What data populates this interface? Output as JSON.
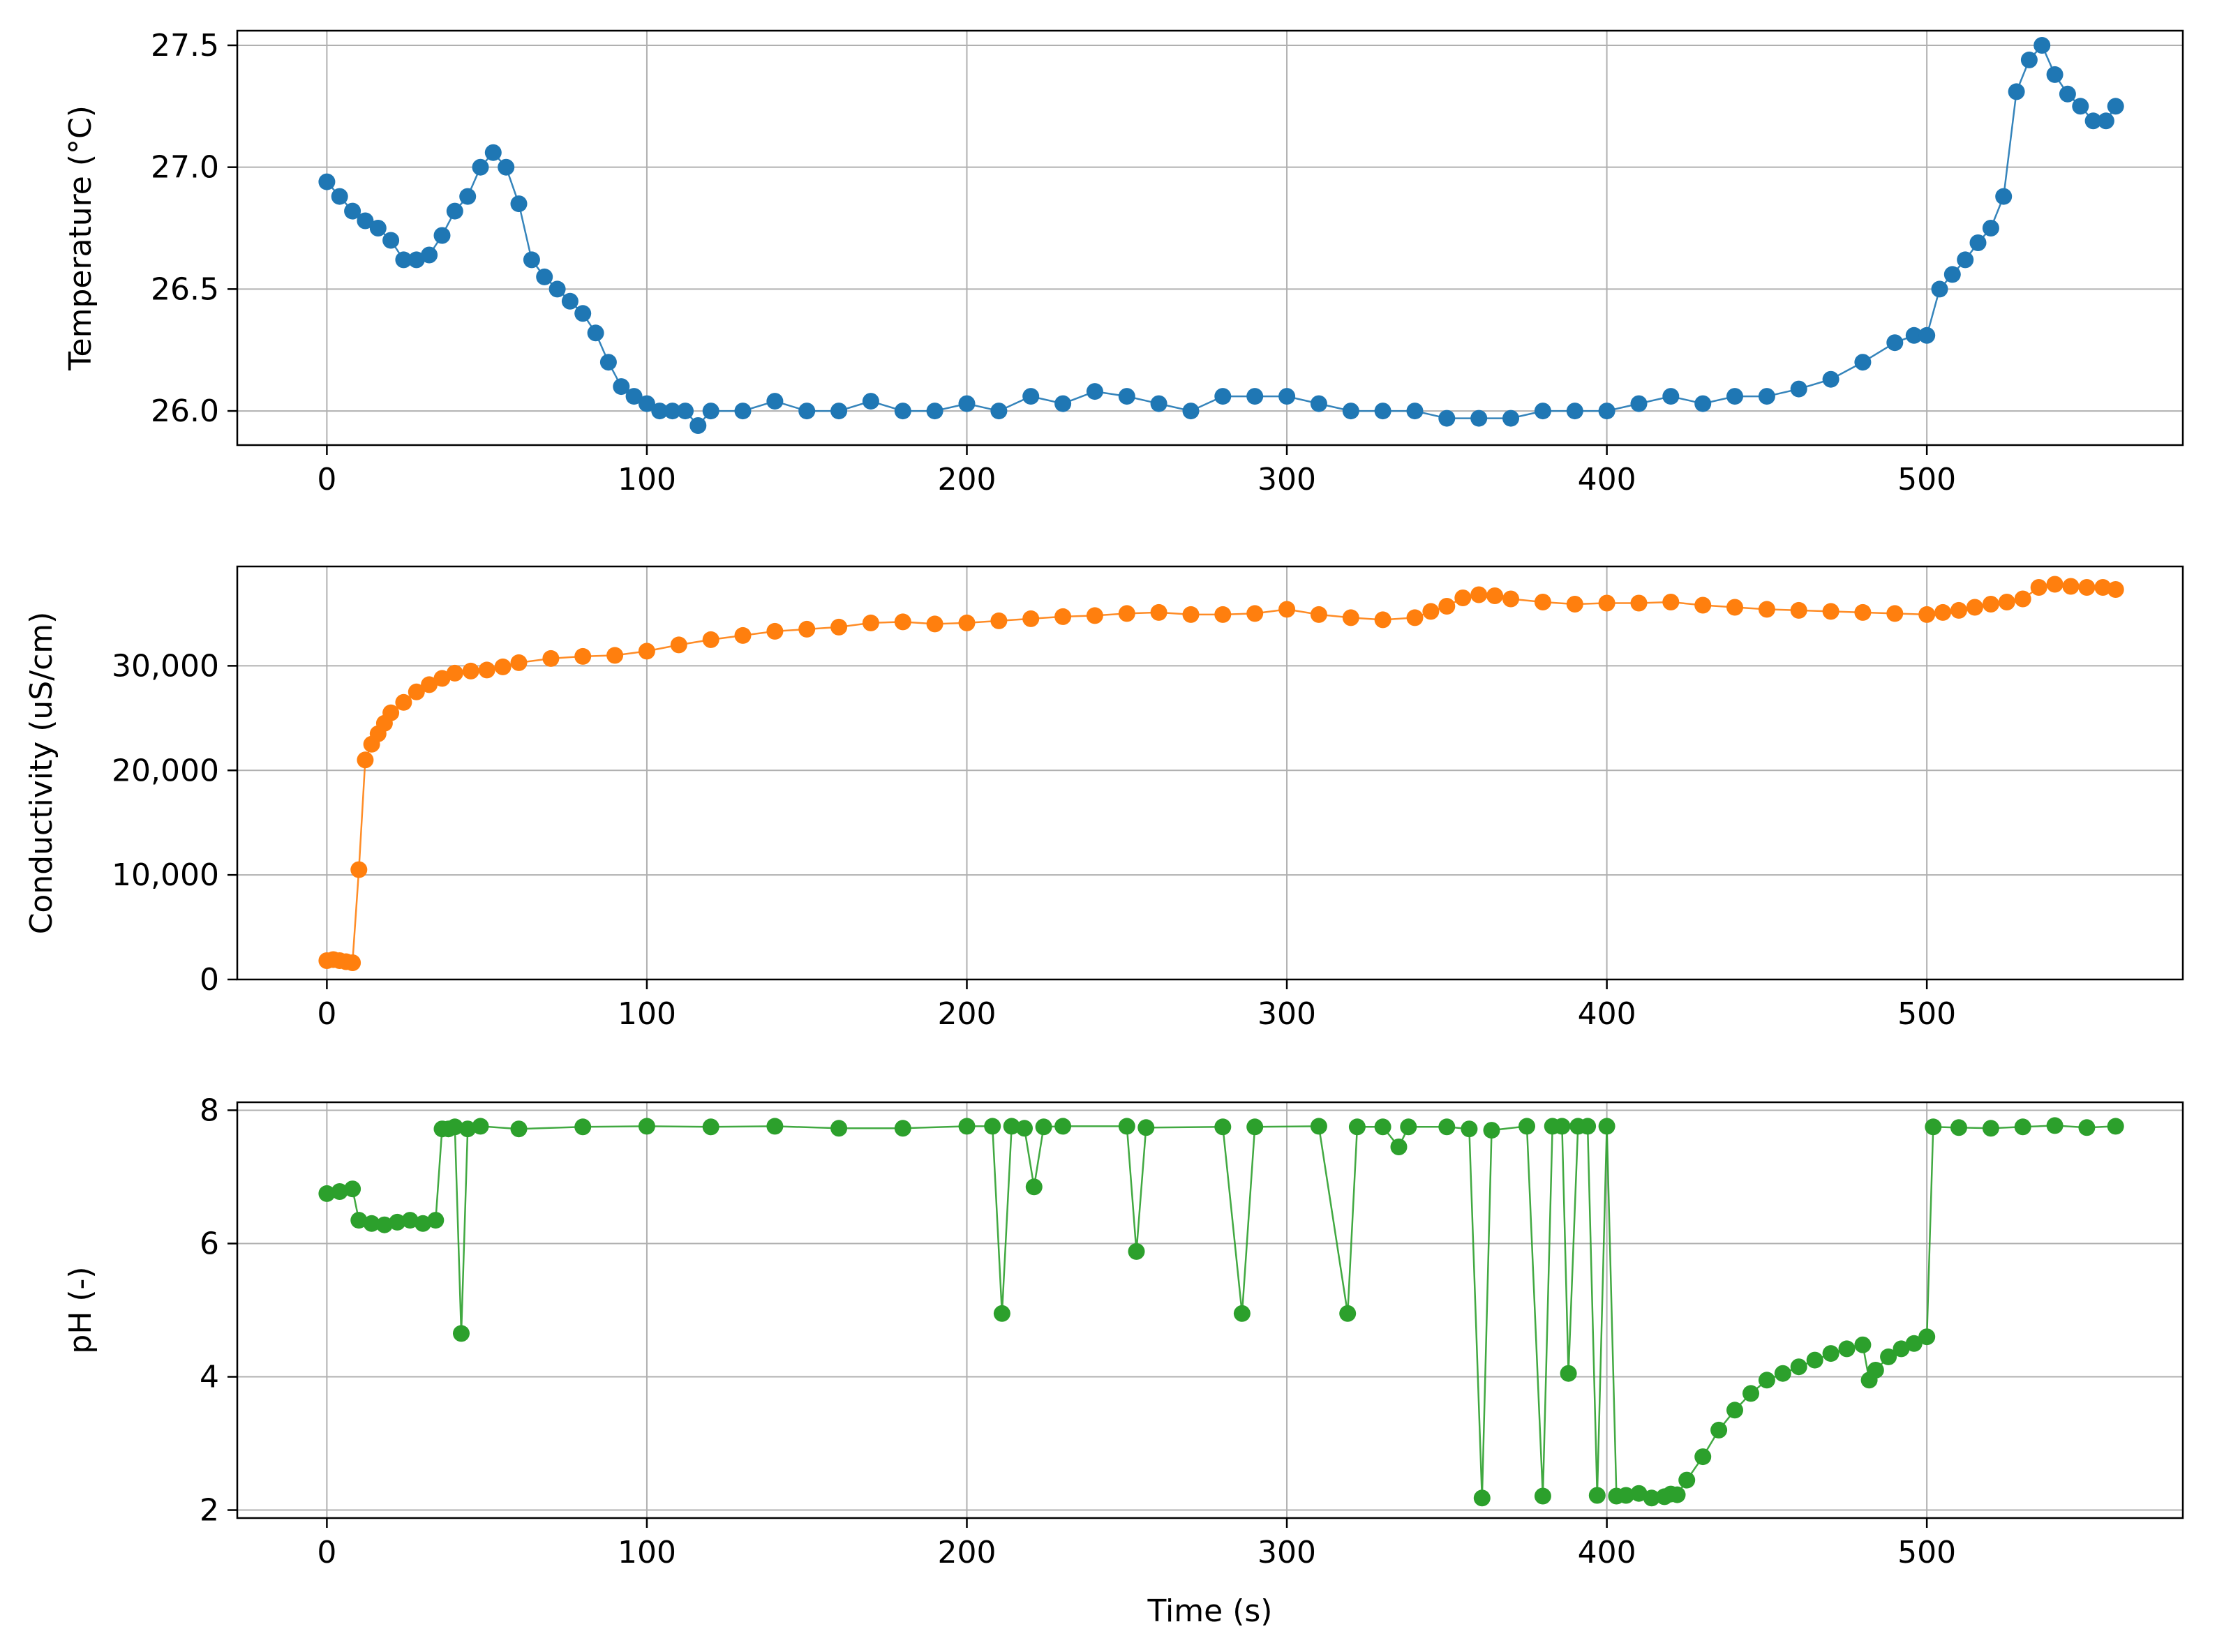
{
  "chart_data": [
    {
      "type": "line",
      "ylabel": "Temperature (°C)",
      "xlabel": "",
      "xlim": [
        -28,
        580
      ],
      "ylim": [
        25.86,
        27.56
      ],
      "grid": true,
      "xticks": [
        0,
        100,
        200,
        300,
        400,
        500
      ],
      "xtick_labels": [
        "0",
        "100",
        "200",
        "300",
        "400",
        "500"
      ],
      "yticks": [
        26.0,
        26.5,
        27.0,
        27.5
      ],
      "ytick_labels": [
        "26.0",
        "26.5",
        "27.0",
        "27.5"
      ],
      "color": "#1f77b4",
      "series": [
        {
          "x": [
            0,
            4,
            8,
            12,
            16,
            20,
            24,
            28,
            32,
            36,
            40,
            44,
            48,
            52,
            56,
            60,
            64,
            68,
            72,
            76,
            80,
            84,
            88,
            92,
            96,
            100,
            104,
            108,
            112,
            116,
            120,
            130,
            140,
            150,
            160,
            170,
            180,
            190,
            200,
            210,
            220,
            230,
            240,
            250,
            260,
            270,
            280,
            290,
            300,
            310,
            320,
            330,
            340,
            350,
            360,
            370,
            380,
            390,
            400,
            410,
            420,
            430,
            440,
            450,
            460,
            470,
            480,
            490,
            496,
            500,
            504,
            508,
            512,
            516,
            520,
            524,
            528,
            532,
            536,
            540,
            544,
            548,
            552,
            556,
            559
          ],
          "y": [
            26.94,
            26.88,
            26.82,
            26.78,
            26.75,
            26.7,
            26.62,
            26.62,
            26.64,
            26.72,
            26.82,
            26.88,
            27.0,
            27.06,
            27.0,
            26.85,
            26.62,
            26.55,
            26.5,
            26.45,
            26.4,
            26.32,
            26.2,
            26.1,
            26.06,
            26.03,
            26.0,
            26.0,
            26.0,
            25.94,
            26.0,
            26.0,
            26.04,
            26.0,
            26.0,
            26.04,
            26.0,
            26.0,
            26.03,
            26.0,
            26.06,
            26.03,
            26.08,
            26.06,
            26.03,
            26.0,
            26.06,
            26.06,
            26.06,
            26.03,
            26.0,
            26.0,
            26.0,
            25.97,
            25.97,
            25.97,
            26.0,
            26.0,
            26.0,
            26.03,
            26.06,
            26.03,
            26.06,
            26.06,
            26.09,
            26.13,
            26.2,
            26.28,
            26.31,
            26.31,
            26.5,
            26.56,
            26.62,
            26.69,
            26.75,
            26.88,
            27.31,
            27.44,
            27.5,
            27.38,
            27.3,
            27.25,
            27.19,
            27.19,
            27.25
          ]
        }
      ]
    },
    {
      "type": "line",
      "ylabel": "Conductivity (uS/cm)",
      "xlabel": "",
      "xlim": [
        -28,
        580
      ],
      "ylim": [
        0,
        39500
      ],
      "grid": true,
      "xticks": [
        0,
        100,
        200,
        300,
        400,
        500
      ],
      "xtick_labels": [
        "0",
        "100",
        "200",
        "300",
        "400",
        "500"
      ],
      "yticks": [
        0,
        10000,
        20000,
        30000
      ],
      "ytick_labels": [
        "0",
        "10,000",
        "20,000",
        "30,000"
      ],
      "color": "#ff7f0e",
      "series": [
        {
          "x": [
            0,
            2,
            4,
            6,
            8,
            10,
            12,
            14,
            16,
            18,
            20,
            24,
            28,
            32,
            36,
            40,
            45,
            50,
            55,
            60,
            70,
            80,
            90,
            100,
            110,
            120,
            130,
            140,
            150,
            160,
            170,
            180,
            190,
            200,
            210,
            220,
            230,
            240,
            250,
            260,
            270,
            280,
            290,
            300,
            310,
            320,
            330,
            340,
            345,
            350,
            355,
            360,
            365,
            370,
            380,
            390,
            400,
            410,
            420,
            430,
            440,
            450,
            460,
            470,
            480,
            490,
            500,
            505,
            510,
            515,
            520,
            525,
            530,
            535,
            540,
            545,
            550,
            555,
            559
          ],
          "y": [
            1800,
            1900,
            1800,
            1700,
            1600,
            10500,
            21000,
            22500,
            23500,
            24500,
            25500,
            26500,
            27500,
            28200,
            28800,
            29300,
            29500,
            29600,
            29900,
            30300,
            30700,
            30900,
            31000,
            31400,
            32000,
            32500,
            32900,
            33300,
            33500,
            33700,
            34100,
            34200,
            34000,
            34100,
            34300,
            34500,
            34700,
            34800,
            35000,
            35100,
            34900,
            34900,
            35000,
            35400,
            34900,
            34600,
            34400,
            34600,
            35200,
            35700,
            36500,
            36800,
            36700,
            36400,
            36100,
            35900,
            36000,
            36000,
            36100,
            35800,
            35600,
            35400,
            35300,
            35200,
            35100,
            35000,
            34900,
            35100,
            35300,
            35600,
            35900,
            36100,
            36400,
            37500,
            37800,
            37600,
            37500,
            37500,
            37300
          ]
        }
      ]
    },
    {
      "type": "line",
      "ylabel": "pH (-)",
      "xlabel": "Time (s)",
      "xlim": [
        -28,
        580
      ],
      "ylim": [
        1.88,
        8.12
      ],
      "grid": true,
      "xticks": [
        0,
        100,
        200,
        300,
        400,
        500
      ],
      "xtick_labels": [
        "0",
        "100",
        "200",
        "300",
        "400",
        "500"
      ],
      "yticks": [
        2,
        4,
        6,
        8
      ],
      "ytick_labels": [
        "2",
        "4",
        "6",
        "8"
      ],
      "color": "#2ca02c",
      "series": [
        {
          "x": [
            0,
            4,
            8,
            10,
            14,
            18,
            22,
            26,
            30,
            34,
            36,
            38,
            40,
            42,
            44,
            48,
            60,
            80,
            100,
            120,
            140,
            160,
            180,
            200,
            208,
            211,
            214,
            218,
            221,
            224,
            230,
            250,
            253,
            256,
            280,
            286,
            290,
            310,
            319,
            322,
            330,
            335,
            338,
            350,
            357,
            361,
            364,
            375,
            380,
            383,
            386,
            388,
            391,
            394,
            397,
            400,
            403,
            406,
            410,
            414,
            418,
            420,
            422,
            425,
            430,
            435,
            440,
            445,
            450,
            455,
            460,
            465,
            470,
            475,
            480,
            482,
            484,
            488,
            492,
            496,
            500,
            502,
            510,
            520,
            530,
            540,
            550,
            559
          ],
          "y": [
            6.75,
            6.78,
            6.82,
            6.35,
            6.3,
            6.28,
            6.32,
            6.35,
            6.3,
            6.35,
            7.72,
            7.72,
            7.75,
            4.65,
            7.72,
            7.76,
            7.72,
            7.75,
            7.76,
            7.75,
            7.76,
            7.73,
            7.73,
            7.76,
            7.76,
            4.95,
            7.76,
            7.73,
            6.85,
            7.75,
            7.76,
            7.76,
            5.88,
            7.74,
            7.75,
            4.95,
            7.75,
            7.76,
            4.95,
            7.75,
            7.75,
            7.45,
            7.75,
            7.75,
            7.72,
            2.18,
            7.7,
            7.76,
            2.21,
            7.76,
            7.76,
            4.05,
            7.76,
            7.76,
            2.22,
            7.76,
            2.21,
            2.22,
            2.25,
            2.18,
            2.2,
            2.24,
            2.23,
            2.45,
            2.8,
            3.2,
            3.5,
            3.75,
            3.95,
            4.05,
            4.15,
            4.25,
            4.35,
            4.42,
            4.48,
            3.95,
            4.1,
            4.3,
            4.42,
            4.5,
            4.6,
            7.75,
            7.74,
            7.73,
            7.75,
            7.77,
            7.74,
            7.76
          ]
        }
      ]
    }
  ]
}
